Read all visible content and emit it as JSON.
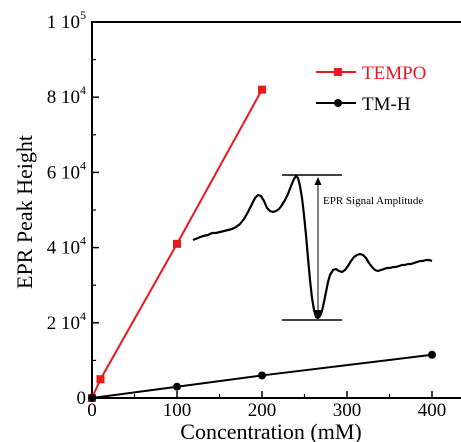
{
  "chart_data": {
    "type": "line",
    "xlabel": "Concentration (mM)",
    "ylabel": "EPR Peak Height",
    "xlim": [
      0,
      420
    ],
    "ylim": [
      0,
      100000
    ],
    "x_ticks": [
      {
        "value": 0,
        "label": "0"
      },
      {
        "value": 100,
        "label": "100"
      },
      {
        "value": 200,
        "label": "200"
      },
      {
        "value": 300,
        "label": "300"
      },
      {
        "value": 400,
        "label": "400"
      }
    ],
    "y_ticks": [
      {
        "value": 0,
        "mantissa": "0",
        "exponent": ""
      },
      {
        "value": 20000,
        "mantissa": "2 10",
        "exponent": "4"
      },
      {
        "value": 40000,
        "mantissa": "4 10",
        "exponent": "4"
      },
      {
        "value": 60000,
        "mantissa": "6 10",
        "exponent": "4"
      },
      {
        "value": 80000,
        "mantissa": "8 10",
        "exponent": "4"
      },
      {
        "value": 100000,
        "mantissa": "1 10",
        "exponent": "5"
      }
    ],
    "legend_position": "top-right",
    "series": [
      {
        "name": "TEMPO",
        "color": "#e8191f",
        "marker": "square",
        "x": [
          0,
          10,
          100,
          200
        ],
        "y": [
          0,
          5000,
          41000,
          82000
        ]
      },
      {
        "name": "TM-H",
        "color": "#000000",
        "marker": "circle",
        "x": [
          0,
          100,
          200,
          400
        ],
        "y": [
          0,
          3000,
          6000,
          11500
        ]
      }
    ],
    "inset": {
      "label": "EPR Signal Amplitude",
      "description_shape": "EPR derivative spectrum trace with amplitude arrow"
    }
  }
}
